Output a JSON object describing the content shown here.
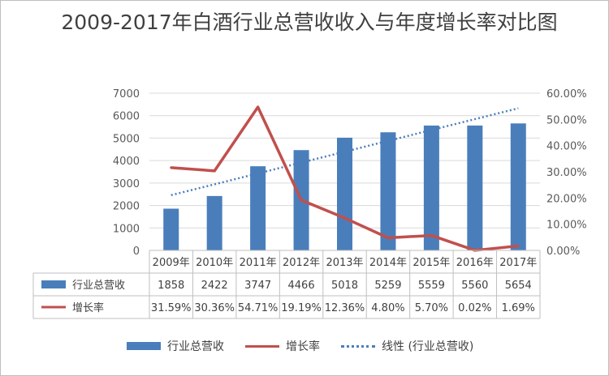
{
  "title": "2009-2017年白酒行业总营收收入与年度增长率对比图",
  "colors": {
    "bar": "#4a7ebb",
    "line": "#c0504d",
    "trend": "#4a7ebb",
    "grid": "#d9d9d9"
  },
  "chart_data": {
    "type": "bar",
    "title": "2009-2017年白酒行业总营收收入与年度增长率对比图",
    "categories": [
      "2009年",
      "2010年",
      "2011年",
      "2012年",
      "2013年",
      "2014年",
      "2015年",
      "2016年",
      "2017年"
    ],
    "series": [
      {
        "name": "行业总营收",
        "type": "bar",
        "axis": "left",
        "values": [
          1858,
          2422,
          3747,
          4466,
          5018,
          5259,
          5559,
          5560,
          5654
        ],
        "labels": [
          "1858",
          "2422",
          "3747",
          "4466",
          "5018",
          "5259",
          "5559",
          "5560",
          "5654"
        ]
      },
      {
        "name": "增长率",
        "type": "line",
        "axis": "right",
        "values": [
          31.59,
          30.36,
          54.71,
          19.19,
          12.36,
          4.8,
          5.7,
          0.02,
          1.69
        ],
        "labels": [
          "31.59%",
          "30.36%",
          "54.71%",
          "19.19%",
          "12.36%",
          "4.80%",
          "5.70%",
          "0.02%",
          "1.69%"
        ]
      },
      {
        "name": "线性 (行业总营收)",
        "type": "trendline",
        "axis": "left"
      }
    ],
    "y_left": {
      "ylim": [
        0,
        7000
      ],
      "ticks": [
        "0",
        "1000",
        "2000",
        "3000",
        "4000",
        "5000",
        "6000",
        "7000"
      ]
    },
    "y_right": {
      "ylim": [
        0,
        60
      ],
      "ticks": [
        "0.00%",
        "10.00%",
        "20.00%",
        "30.00%",
        "40.00%",
        "50.00%",
        "60.00%"
      ]
    },
    "grid": true,
    "legend": "bottom",
    "data_table": true
  }
}
